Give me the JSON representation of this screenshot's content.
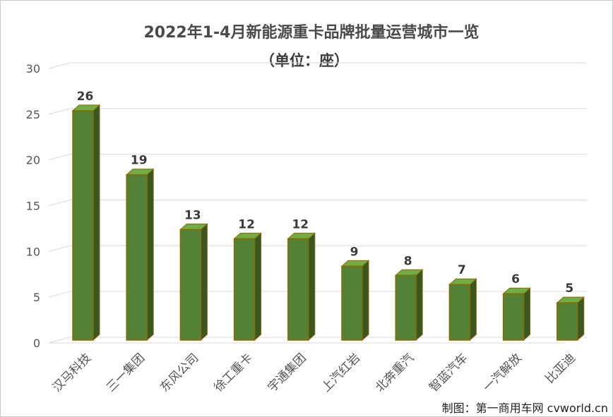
{
  "chart_data": {
    "type": "bar",
    "title": "2022年1-4月新能源重卡品牌批量运营城市一览",
    "subtitle": "（单位：座）",
    "categories": [
      "汉马科技",
      "三一集团",
      "东风公司",
      "徐工重卡",
      "宇通集团",
      "上汽红岩",
      "北奔重汽",
      "智蓝汽车",
      "一汽解放",
      "比亚迪"
    ],
    "values": [
      26,
      19,
      13,
      12,
      12,
      9,
      8,
      7,
      6,
      5
    ],
    "value_labels": [
      "26",
      "19",
      "13",
      "12",
      "12",
      "9",
      "8",
      "7",
      "6",
      "5"
    ],
    "y_ticks": [
      "0",
      "5",
      "10",
      "15",
      "20",
      "25",
      "30"
    ],
    "ylim": [
      0,
      30
    ],
    "grid": true,
    "legend": "none",
    "colors": {
      "bar_front": "#538135",
      "bar_side": "#385723",
      "bar_top": "#70ad47",
      "bar_edge": "#8b6a00"
    }
  },
  "credit": "制图：第一商用车网 cvworld.cn"
}
